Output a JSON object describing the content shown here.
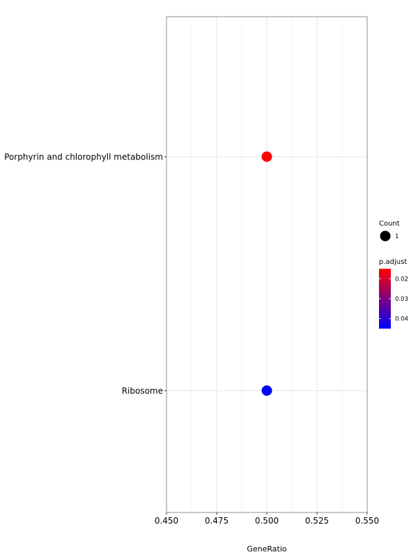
{
  "chart_data": {
    "type": "scatter",
    "xlabel": "GeneRatio",
    "ylabel": "",
    "xlim": [
      0.45,
      0.55
    ],
    "x_ticks": [
      0.45,
      0.475,
      0.5,
      0.525,
      0.55
    ],
    "x_tick_labels": [
      "0.450",
      "0.475",
      "0.500",
      "0.525",
      "0.550"
    ],
    "grid": true,
    "categories": [
      "Porphyrin and chlorophyll metabolism",
      "Ribosome"
    ],
    "points": [
      {
        "category": "Porphyrin and chlorophyll metabolism",
        "x": 0.5,
        "count": 1,
        "p_adjust": 0.015,
        "color": "#ff0000"
      },
      {
        "category": "Ribosome",
        "x": 0.5,
        "count": 1,
        "p_adjust": 0.045,
        "color": "#0000ff"
      }
    ],
    "legend": {
      "placement": "right",
      "size": {
        "title": "Count",
        "entries": [
          {
            "label": "1",
            "value": 1
          }
        ]
      },
      "color": {
        "title": "p.adjust",
        "ticks": [
          {
            "label": "0.02",
            "value": 0.02
          },
          {
            "label": "0.03",
            "value": 0.03
          },
          {
            "label": "0.04",
            "value": 0.04
          }
        ],
        "range": [
          0.015,
          0.045
        ],
        "low_color": "#ff0000",
        "high_color": "#0000ff"
      }
    }
  }
}
